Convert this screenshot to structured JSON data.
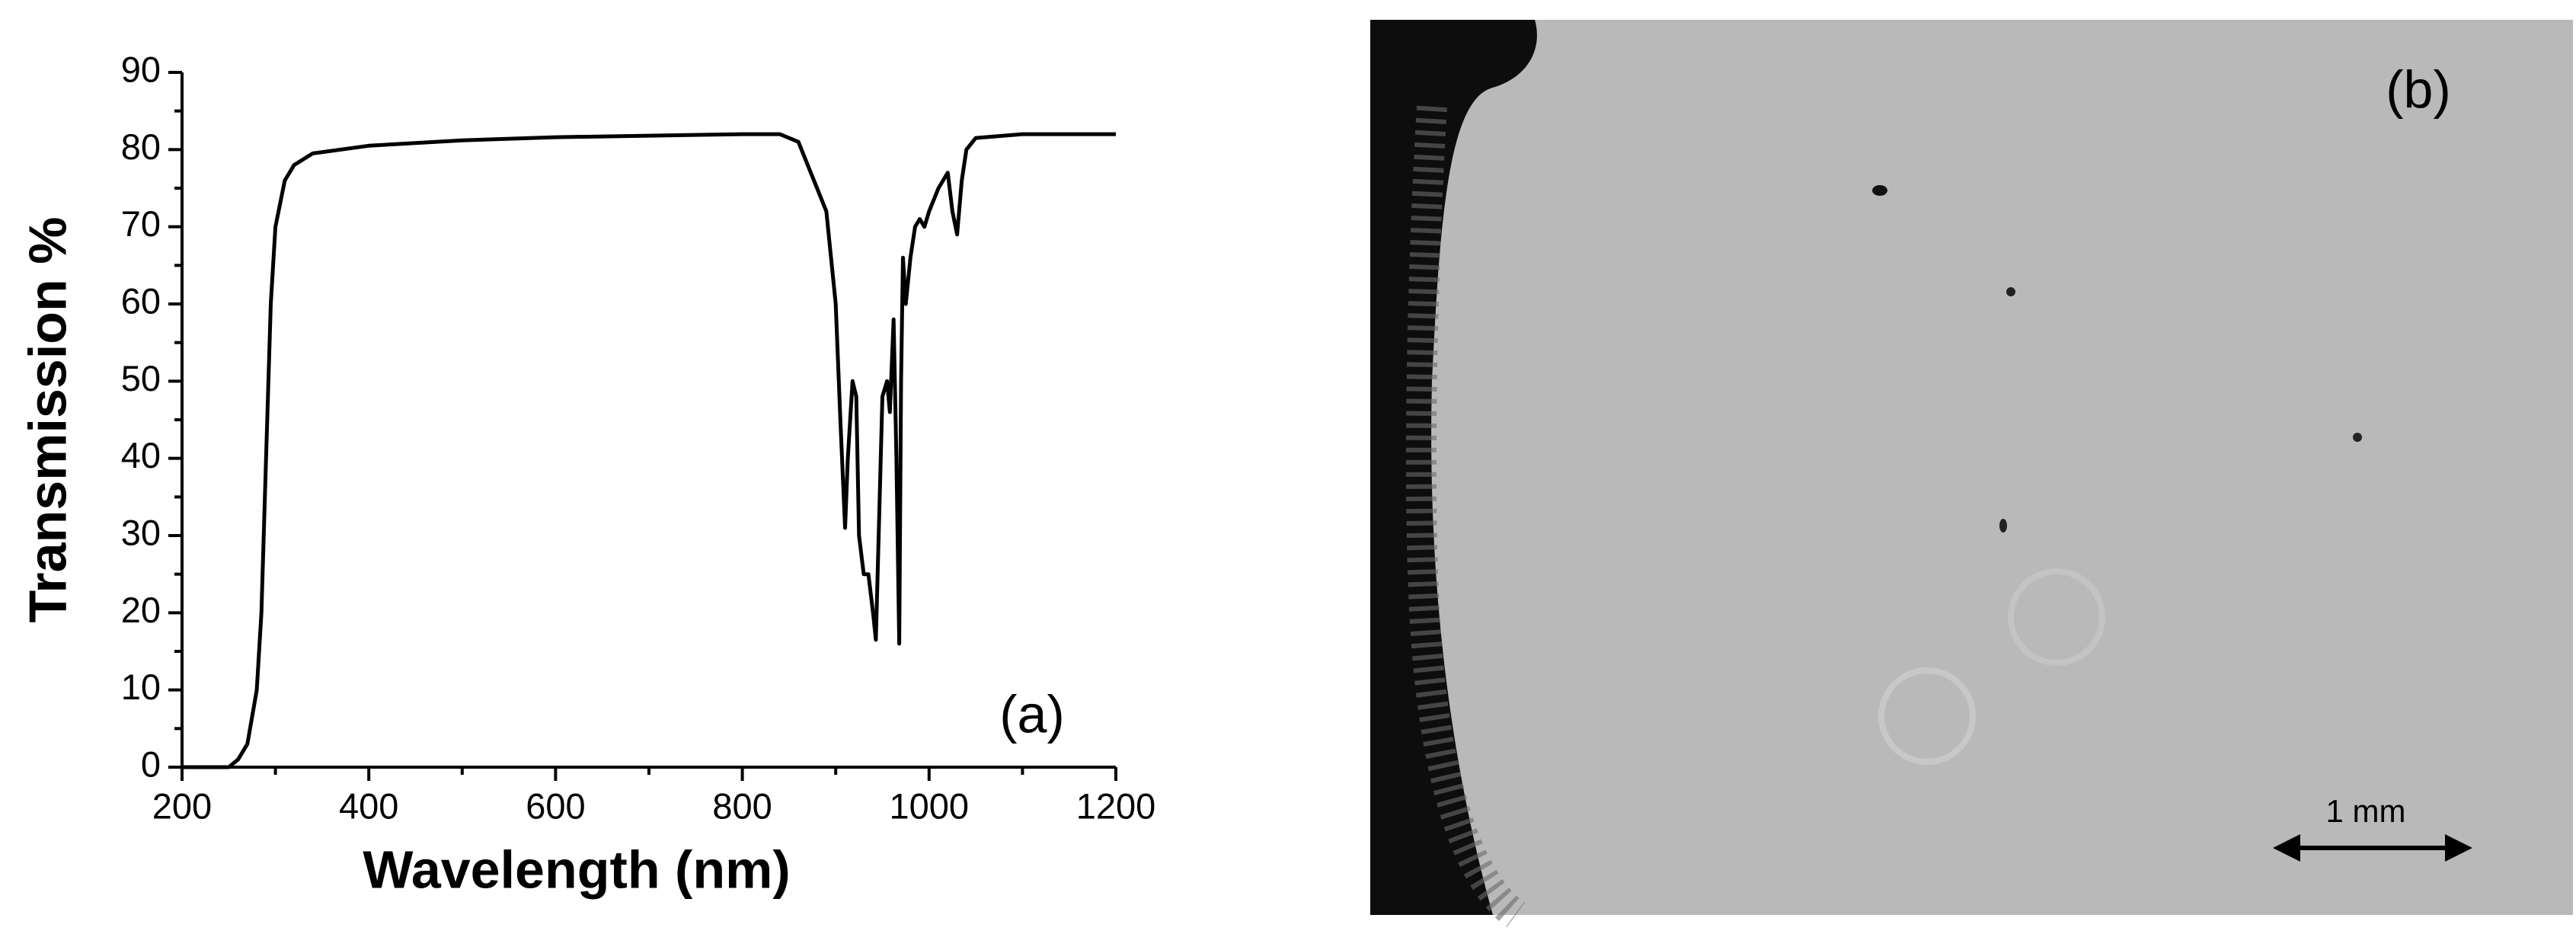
{
  "chart_data": {
    "type": "line",
    "xlabel": "Wavelength (nm)",
    "ylabel": "Transmission %",
    "annotation": "(a)",
    "x": [
      200,
      250,
      260,
      270,
      280,
      285,
      290,
      295,
      300,
      310,
      320,
      340,
      400,
      500,
      600,
      700,
      800,
      840,
      860,
      870,
      880,
      890,
      900,
      905,
      910,
      913,
      918,
      922,
      925,
      930,
      935,
      940,
      943,
      946,
      950,
      955,
      958,
      962,
      965,
      968,
      970,
      972,
      975,
      980,
      985,
      990,
      995,
      1000,
      1010,
      1020,
      1025,
      1030,
      1035,
      1040,
      1050,
      1100,
      1200
    ],
    "series": [
      {
        "color": "#000000",
        "values": [
          0,
          0,
          1,
          3,
          10,
          20,
          40,
          60,
          70,
          76,
          78,
          79.5,
          80.5,
          81.2,
          81.6,
          81.8,
          82,
          82,
          81,
          78,
          75,
          72,
          60,
          45,
          31,
          40,
          50,
          48,
          30,
          25,
          25,
          20,
          16.5,
          30,
          48,
          50,
          46,
          58,
          40,
          16,
          50,
          66,
          60,
          66,
          70,
          71,
          70,
          72,
          75,
          77,
          72,
          69,
          76,
          80,
          81.5,
          82,
          82
        ]
      }
    ],
    "xlim": [
      200,
      1200
    ],
    "xticks": [
      200,
      400,
      600,
      800,
      1000,
      1200
    ],
    "ylim": [
      0,
      90
    ],
    "yticks": [
      0,
      10,
      20,
      30,
      40,
      50,
      60,
      70,
      80,
      90
    ]
  },
  "image_panel": {
    "label": "(b)",
    "scale_bar": "1 mm"
  }
}
